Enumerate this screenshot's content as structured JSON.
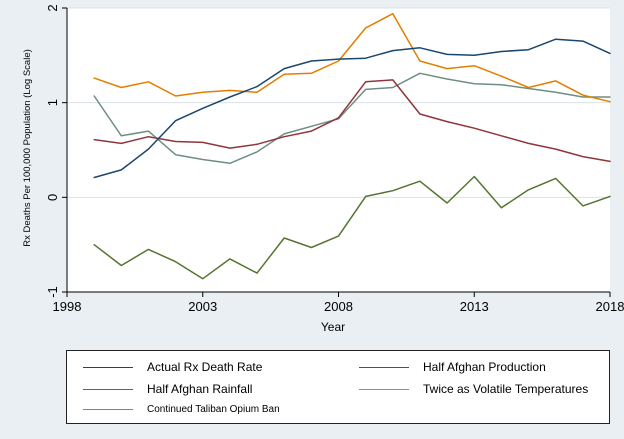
{
  "chart_data": {
    "type": "line",
    "title": "",
    "xlabel": "Year",
    "ylabel": "Rx Deaths Per 100,000 Population (Log Scale)",
    "xlim": [
      1998,
      2018
    ],
    "ylim": [
      -1,
      2
    ],
    "xticks": [
      "1998",
      "2003",
      "2008",
      "2013",
      "2018"
    ],
    "yticks": [
      "-1",
      "0",
      "1",
      "2"
    ],
    "x": [
      1999,
      2000,
      2001,
      2002,
      2003,
      2004,
      2005,
      2006,
      2007,
      2008,
      2009,
      2010,
      2011,
      2012,
      2013,
      2014,
      2015,
      2016,
      2017,
      2018
    ],
    "series": [
      {
        "name": "Actual Rx Death Rate",
        "color": "#1a476f",
        "values": [
          0.21,
          0.29,
          0.51,
          0.81,
          0.94,
          1.06,
          1.17,
          1.36,
          1.44,
          1.46,
          1.47,
          1.55,
          1.58,
          1.51,
          1.5,
          1.54,
          1.56,
          1.67,
          1.65,
          1.52
        ]
      },
      {
        "name": "Half Afghan Production",
        "color": "#90353b",
        "values": [
          0.61,
          0.57,
          0.64,
          0.59,
          0.58,
          0.52,
          0.56,
          0.64,
          0.7,
          0.84,
          1.22,
          1.24,
          0.88,
          0.8,
          0.73,
          0.65,
          0.57,
          0.51,
          0.43,
          0.38
        ]
      },
      {
        "name": "Half Afghan Rainfall",
        "color": "#55752f",
        "values": [
          -0.5,
          -0.72,
          -0.55,
          -0.68,
          -0.86,
          -0.65,
          -0.8,
          -0.43,
          -0.53,
          -0.41,
          0.01,
          0.07,
          0.17,
          -0.06,
          0.22,
          -0.11,
          0.08,
          0.2,
          -0.09,
          0.01
        ]
      },
      {
        "name": "Twice as Volatile Temperatures",
        "color": "#e37e00",
        "values": [
          1.26,
          1.16,
          1.22,
          1.07,
          1.11,
          1.13,
          1.11,
          1.3,
          1.31,
          1.44,
          1.79,
          1.94,
          1.44,
          1.36,
          1.39,
          1.28,
          1.16,
          1.23,
          1.08,
          1.01
        ]
      },
      {
        "name": "Continued Taliban Opium Ban",
        "color": "#6e8e84",
        "values": [
          1.07,
          0.65,
          0.7,
          0.45,
          0.4,
          0.36,
          0.48,
          0.67,
          0.75,
          0.83,
          1.14,
          1.16,
          1.31,
          1.25,
          1.2,
          1.19,
          1.15,
          1.11,
          1.06,
          1.06
        ]
      }
    ],
    "legend": "bottom"
  }
}
